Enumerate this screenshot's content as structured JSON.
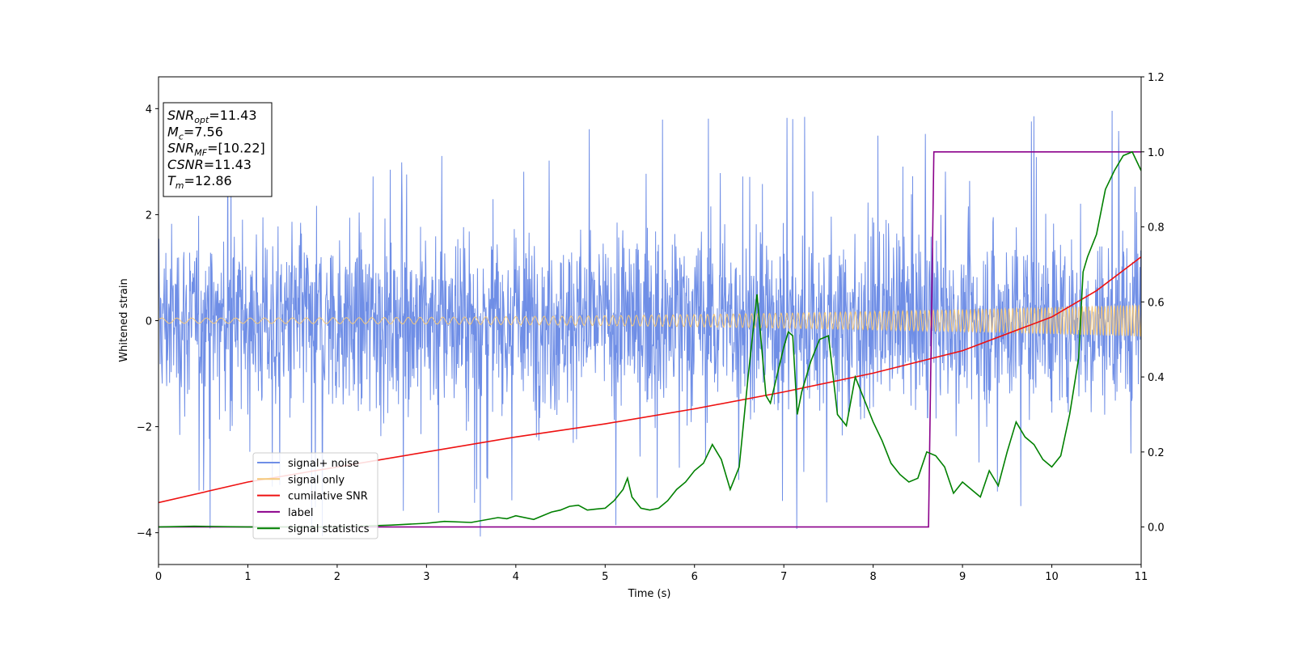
{
  "chart_data": {
    "type": "line",
    "xlabel": "Time (s)",
    "ylabel": "Whitened strain",
    "xlim": [
      0,
      11
    ],
    "ylim": [
      -4.6,
      4.6
    ],
    "y2lim": [
      -0.1,
      1.2
    ],
    "xticks": [
      "0",
      "1",
      "2",
      "3",
      "4",
      "5",
      "6",
      "7",
      "8",
      "9",
      "10",
      "11"
    ],
    "yticks": [
      "4",
      "2",
      "0",
      "−2",
      "−4"
    ],
    "y2ticks": [
      "0.0",
      "0.2",
      "0.4",
      "0.6",
      "0.8",
      "1.0",
      "1.2"
    ],
    "grid": false,
    "legend_position": "lower-left",
    "textbox_position": "upper-left",
    "textbox": [
      {
        "base": "SNR",
        "sub": "opt",
        "rest": "=11.43"
      },
      {
        "base": "M",
        "sub": "c",
        "rest": "=7.56"
      },
      {
        "base": "SNR",
        "sub": "MF",
        "rest": "=[10.22]"
      },
      {
        "base": "CSNR",
        "sub": "",
        "rest": "=11.43"
      },
      {
        "base": "T",
        "sub": "m",
        "rest": "=12.86"
      }
    ],
    "series": [
      {
        "name": "signal+ noise",
        "color": "#6f8ee6",
        "axis": "left",
        "kind": "noise",
        "std": 0.85,
        "spike_max": 4.1
      },
      {
        "name": "signal only",
        "color": "#f5c87a",
        "axis": "left",
        "kind": "chirp",
        "amp_start": 0.05,
        "amp_end": 0.3,
        "freq_start": 6,
        "freq_end": 30
      },
      {
        "name": "cumilative SNR",
        "color": "#ee1111",
        "axis": "right",
        "x": [
          0,
          1,
          2,
          3,
          4,
          5,
          6,
          7,
          8,
          9,
          10,
          10.5,
          11
        ],
        "y": [
          0.065,
          0.12,
          0.16,
          0.2,
          0.24,
          0.275,
          0.315,
          0.36,
          0.41,
          0.47,
          0.56,
          0.63,
          0.72
        ]
      },
      {
        "name": "label",
        "color": "#8b008b",
        "axis": "right",
        "x": [
          0,
          8.62,
          8.68,
          11
        ],
        "y": [
          0,
          0,
          1,
          1
        ]
      },
      {
        "name": "signal statistics",
        "color": "#008000",
        "axis": "right",
        "x": [
          0,
          0.4,
          1,
          2,
          2.6,
          3,
          3.2,
          3.5,
          3.8,
          3.9,
          4,
          4.2,
          4.4,
          4.5,
          4.6,
          4.7,
          4.8,
          4.9,
          5,
          5.1,
          5.2,
          5.25,
          5.3,
          5.4,
          5.5,
          5.6,
          5.7,
          5.8,
          5.9,
          6,
          6.1,
          6.2,
          6.25,
          6.3,
          6.4,
          6.5,
          6.6,
          6.7,
          6.8,
          6.85,
          6.9,
          7,
          7.05,
          7.1,
          7.15,
          7.2,
          7.3,
          7.4,
          7.5,
          7.6,
          7.7,
          7.8,
          7.9,
          8,
          8.1,
          8.2,
          8.3,
          8.4,
          8.5,
          8.6,
          8.7,
          8.8,
          8.9,
          9,
          9.1,
          9.2,
          9.3,
          9.4,
          9.5,
          9.6,
          9.7,
          9.8,
          9.9,
          10,
          10.1,
          10.2,
          10.3,
          10.35,
          10.4,
          10.5,
          10.6,
          10.7,
          10.8,
          10.9,
          11
        ],
        "y": [
          0,
          0.002,
          0,
          0,
          0.005,
          0.01,
          0.015,
          0.012,
          0.025,
          0.022,
          0.03,
          0.02,
          0.04,
          0.045,
          0.055,
          0.058,
          0.045,
          0.048,
          0.05,
          0.07,
          0.1,
          0.13,
          0.08,
          0.05,
          0.045,
          0.05,
          0.07,
          0.1,
          0.12,
          0.15,
          0.17,
          0.22,
          0.2,
          0.18,
          0.1,
          0.16,
          0.4,
          0.62,
          0.35,
          0.33,
          0.38,
          0.48,
          0.52,
          0.51,
          0.3,
          0.36,
          0.44,
          0.5,
          0.51,
          0.3,
          0.27,
          0.4,
          0.34,
          0.28,
          0.23,
          0.17,
          0.14,
          0.12,
          0.13,
          0.2,
          0.19,
          0.16,
          0.09,
          0.12,
          0.1,
          0.08,
          0.15,
          0.11,
          0.2,
          0.28,
          0.24,
          0.22,
          0.18,
          0.16,
          0.19,
          0.3,
          0.45,
          0.68,
          0.72,
          0.78,
          0.9,
          0.95,
          0.99,
          1.0,
          0.95
        ]
      }
    ]
  }
}
